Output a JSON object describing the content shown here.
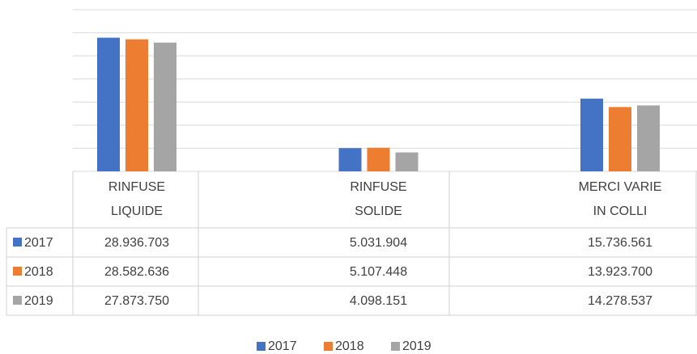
{
  "chart_data": {
    "type": "bar",
    "categories": [
      "RINFUSE LIQUIDE",
      "RINFUSE SOLIDE",
      "MERCI VARIE IN COLLI"
    ],
    "series": [
      {
        "name": "2017",
        "color": "#4472c4",
        "values": [
          28936703,
          5031904,
          15736561
        ],
        "value_labels": [
          "28.936.703",
          "5.031.904",
          "15.736.561"
        ]
      },
      {
        "name": "2018",
        "color": "#ed7d31",
        "values": [
          28582636,
          5107448,
          13923700
        ],
        "value_labels": [
          "28.582.636",
          "5.107.448",
          "13.923.700"
        ]
      },
      {
        "name": "2019",
        "color": "#a5a5a5",
        "values": [
          27873750,
          4098151,
          14278537
        ],
        "value_labels": [
          "27.873.750",
          "4.098.151",
          "14.278.537"
        ]
      }
    ],
    "ylim": [
      0,
      35000000
    ],
    "yticks": [
      0,
      5000000,
      10000000,
      15000000,
      20000000,
      25000000,
      30000000,
      35000000
    ],
    "grid": true
  }
}
